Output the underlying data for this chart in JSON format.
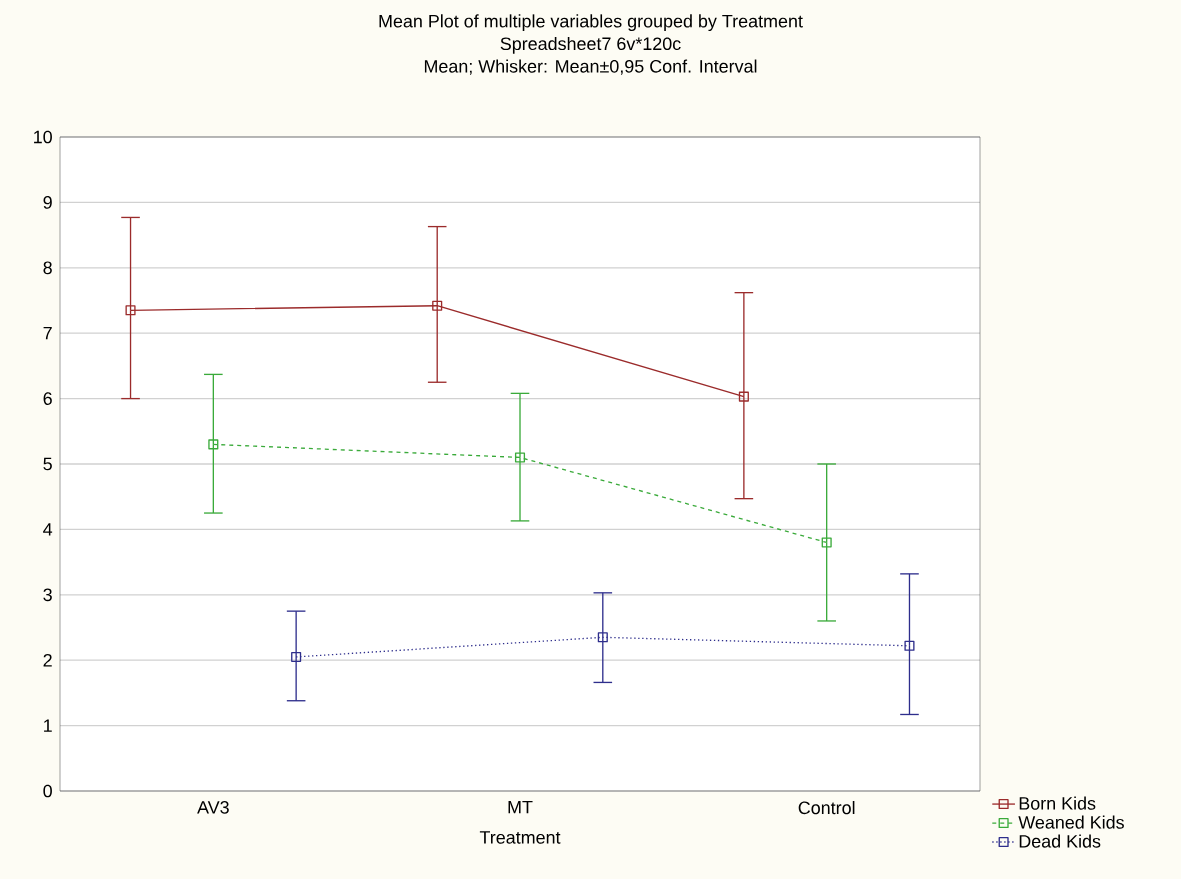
{
  "chart_data": {
    "type": "line",
    "title": "Mean Plot of multiple variables grouped by  Treatment",
    "subtitle": "Spreadsheet7 6v*120c",
    "annotations": [
      "Mean; Whisker: Mean±0,95 Conf. Interval"
    ],
    "xlabel": "Treatment",
    "categories": [
      "AV3",
      "MT",
      "Control"
    ],
    "ylim": [
      0,
      10
    ],
    "yticks": [
      0,
      1,
      2,
      3,
      4,
      5,
      6,
      7,
      8,
      9,
      10
    ],
    "grid": "y",
    "legend": "bottom right",
    "marker": "square",
    "series": [
      {
        "name": "Born Kids",
        "color": "#9b2b2b",
        "line_style": "solid",
        "values": [
          7.35,
          7.42,
          6.03
        ],
        "errors": [
          [
            6.0,
            8.77
          ],
          [
            6.25,
            8.63
          ],
          [
            4.47,
            7.62
          ]
        ]
      },
      {
        "name": "Weaned Kids",
        "color": "#3aaa3a",
        "line_style": "dashed",
        "values": [
          5.3,
          5.1,
          3.8
        ],
        "errors": [
          [
            4.25,
            6.37
          ],
          [
            4.13,
            6.08
          ],
          [
            2.6,
            5.0
          ]
        ]
      },
      {
        "name": "Dead Kids",
        "color": "#2e2e8c",
        "line_style": "dotted",
        "values": [
          2.05,
          2.35,
          2.22
        ],
        "errors": [
          [
            1.38,
            2.75
          ],
          [
            1.66,
            3.03
          ],
          [
            1.17,
            3.32
          ]
        ]
      }
    ]
  }
}
